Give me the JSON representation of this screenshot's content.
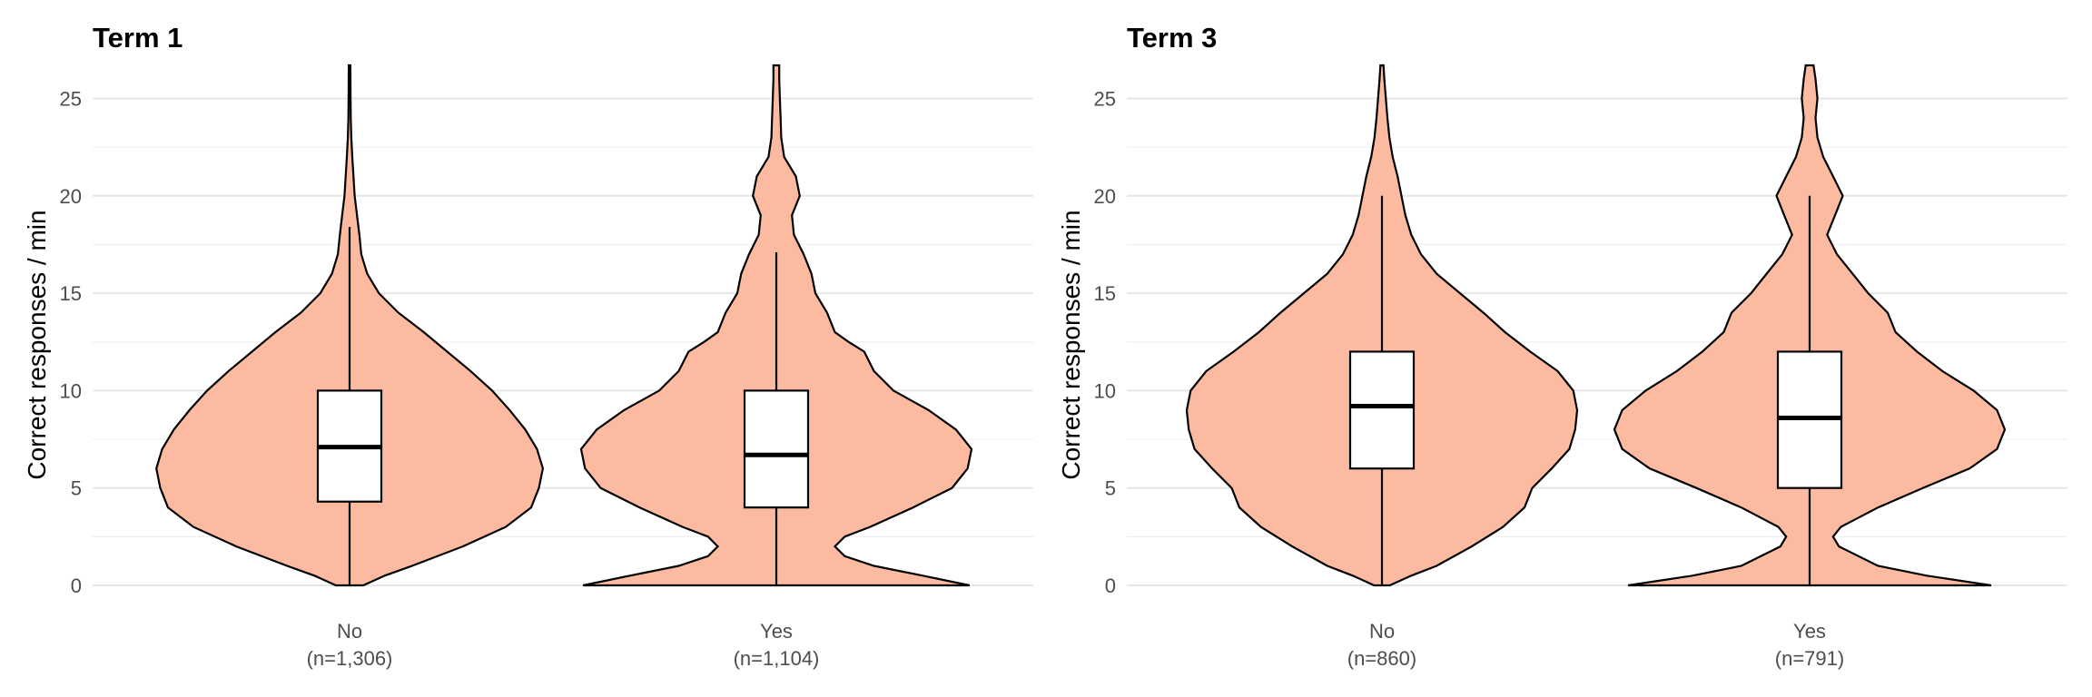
{
  "chart_data": [
    {
      "type": "violin",
      "title": "Term 1",
      "ylabel": "Correct responses / min",
      "ylim": [
        0,
        26.7
      ],
      "y_ticks": [
        0,
        5,
        10,
        15,
        20,
        25
      ],
      "grid": true,
      "categories": [
        {
          "name": "No",
          "n_label": "(n=1,306)",
          "box": {
            "lower_whisker": 0,
            "q1": 4.3,
            "median": 7.1,
            "q3": 10,
            "upper_whisker": 18.4
          },
          "density": [
            [
              0,
              0.07
            ],
            [
              0.5,
              0.18
            ],
            [
              1,
              0.32
            ],
            [
              2,
              0.58
            ],
            [
              3,
              0.8
            ],
            [
              4,
              0.93
            ],
            [
              5,
              0.97
            ],
            [
              6,
              0.99
            ],
            [
              7,
              0.96
            ],
            [
              8,
              0.9
            ],
            [
              9,
              0.82
            ],
            [
              10,
              0.73
            ],
            [
              11,
              0.62
            ],
            [
              12,
              0.5
            ],
            [
              13,
              0.38
            ],
            [
              14,
              0.25
            ],
            [
              15,
              0.15
            ],
            [
              16,
              0.09
            ],
            [
              17,
              0.06
            ],
            [
              18,
              0.05
            ],
            [
              19,
              0.038
            ],
            [
              20,
              0.026
            ],
            [
              21,
              0.02
            ],
            [
              22,
              0.014
            ],
            [
              23,
              0.009
            ],
            [
              24,
              0.006
            ],
            [
              25,
              0.005
            ],
            [
              26.7,
              0.004
            ]
          ]
        },
        {
          "name": "Yes",
          "n_label": "(n=1,104)",
          "box": {
            "lower_whisker": 0,
            "q1": 4,
            "median": 6.7,
            "q3": 10,
            "upper_whisker": 17.1
          },
          "density": [
            [
              0,
              0.99
            ],
            [
              0.5,
              0.75
            ],
            [
              1,
              0.5
            ],
            [
              1.5,
              0.35
            ],
            [
              2,
              0.3
            ],
            [
              2.5,
              0.35
            ],
            [
              3,
              0.48
            ],
            [
              4,
              0.7
            ],
            [
              5,
              0.9
            ],
            [
              6,
              0.98
            ],
            [
              7,
              1.0
            ],
            [
              8,
              0.92
            ],
            [
              9,
              0.78
            ],
            [
              10,
              0.6
            ],
            [
              11,
              0.5
            ],
            [
              12,
              0.45
            ],
            [
              12.5,
              0.37
            ],
            [
              13,
              0.3
            ],
            [
              14,
              0.26
            ],
            [
              15,
              0.2
            ],
            [
              16,
              0.18
            ],
            [
              17,
              0.14
            ],
            [
              18,
              0.09
            ],
            [
              19,
              0.08
            ],
            [
              20,
              0.12
            ],
            [
              21,
              0.1
            ],
            [
              22,
              0.04
            ],
            [
              23,
              0.025
            ],
            [
              24,
              0.022
            ],
            [
              25,
              0.018
            ],
            [
              26,
              0.015
            ],
            [
              26.7,
              0.015
            ]
          ]
        }
      ]
    },
    {
      "type": "violin",
      "title": "Term 3",
      "ylabel": "Correct responses / min",
      "ylim": [
        0,
        26.7
      ],
      "y_ticks": [
        0,
        5,
        10,
        15,
        20,
        25
      ],
      "grid": true,
      "categories": [
        {
          "name": "No",
          "n_label": "(n=860)",
          "box": {
            "lower_whisker": 0,
            "q1": 6,
            "median": 9.2,
            "q3": 12,
            "upper_whisker": 20
          },
          "density": [
            [
              0,
              0.04
            ],
            [
              0.5,
              0.15
            ],
            [
              1,
              0.28
            ],
            [
              2,
              0.46
            ],
            [
              3,
              0.62
            ],
            [
              4,
              0.73
            ],
            [
              5,
              0.77
            ],
            [
              6,
              0.87
            ],
            [
              7,
              0.96
            ],
            [
              8,
              0.99
            ],
            [
              9,
              1.0
            ],
            [
              10,
              0.98
            ],
            [
              11,
              0.9
            ],
            [
              12,
              0.76
            ],
            [
              13,
              0.63
            ],
            [
              14,
              0.52
            ],
            [
              15,
              0.4
            ],
            [
              16,
              0.28
            ],
            [
              17,
              0.2
            ],
            [
              18,
              0.15
            ],
            [
              19,
              0.12
            ],
            [
              20,
              0.1
            ],
            [
              21,
              0.08
            ],
            [
              22,
              0.055
            ],
            [
              23,
              0.038
            ],
            [
              24,
              0.028
            ],
            [
              25,
              0.02
            ],
            [
              26,
              0.012
            ],
            [
              26.7,
              0.008
            ]
          ]
        },
        {
          "name": "Yes",
          "n_label": "(n=791)",
          "box": {
            "lower_whisker": 0,
            "q1": 5,
            "median": 8.6,
            "q3": 12,
            "upper_whisker": 20
          },
          "density": [
            [
              0,
              0.93
            ],
            [
              0.5,
              0.6
            ],
            [
              1,
              0.35
            ],
            [
              2,
              0.15
            ],
            [
              2.5,
              0.12
            ],
            [
              3,
              0.16
            ],
            [
              4,
              0.35
            ],
            [
              5,
              0.58
            ],
            [
              6,
              0.82
            ],
            [
              7,
              0.96
            ],
            [
              8,
              1.0
            ],
            [
              9,
              0.96
            ],
            [
              10,
              0.84
            ],
            [
              11,
              0.68
            ],
            [
              12,
              0.55
            ],
            [
              13,
              0.44
            ],
            [
              14,
              0.4
            ],
            [
              15,
              0.3
            ],
            [
              16,
              0.22
            ],
            [
              17,
              0.14
            ],
            [
              18,
              0.09
            ],
            [
              19,
              0.13
            ],
            [
              20,
              0.17
            ],
            [
              21,
              0.12
            ],
            [
              22,
              0.07
            ],
            [
              23,
              0.04
            ],
            [
              24,
              0.03
            ],
            [
              25,
              0.04
            ],
            [
              26,
              0.03
            ],
            [
              26.7,
              0.02
            ]
          ]
        }
      ]
    }
  ]
}
